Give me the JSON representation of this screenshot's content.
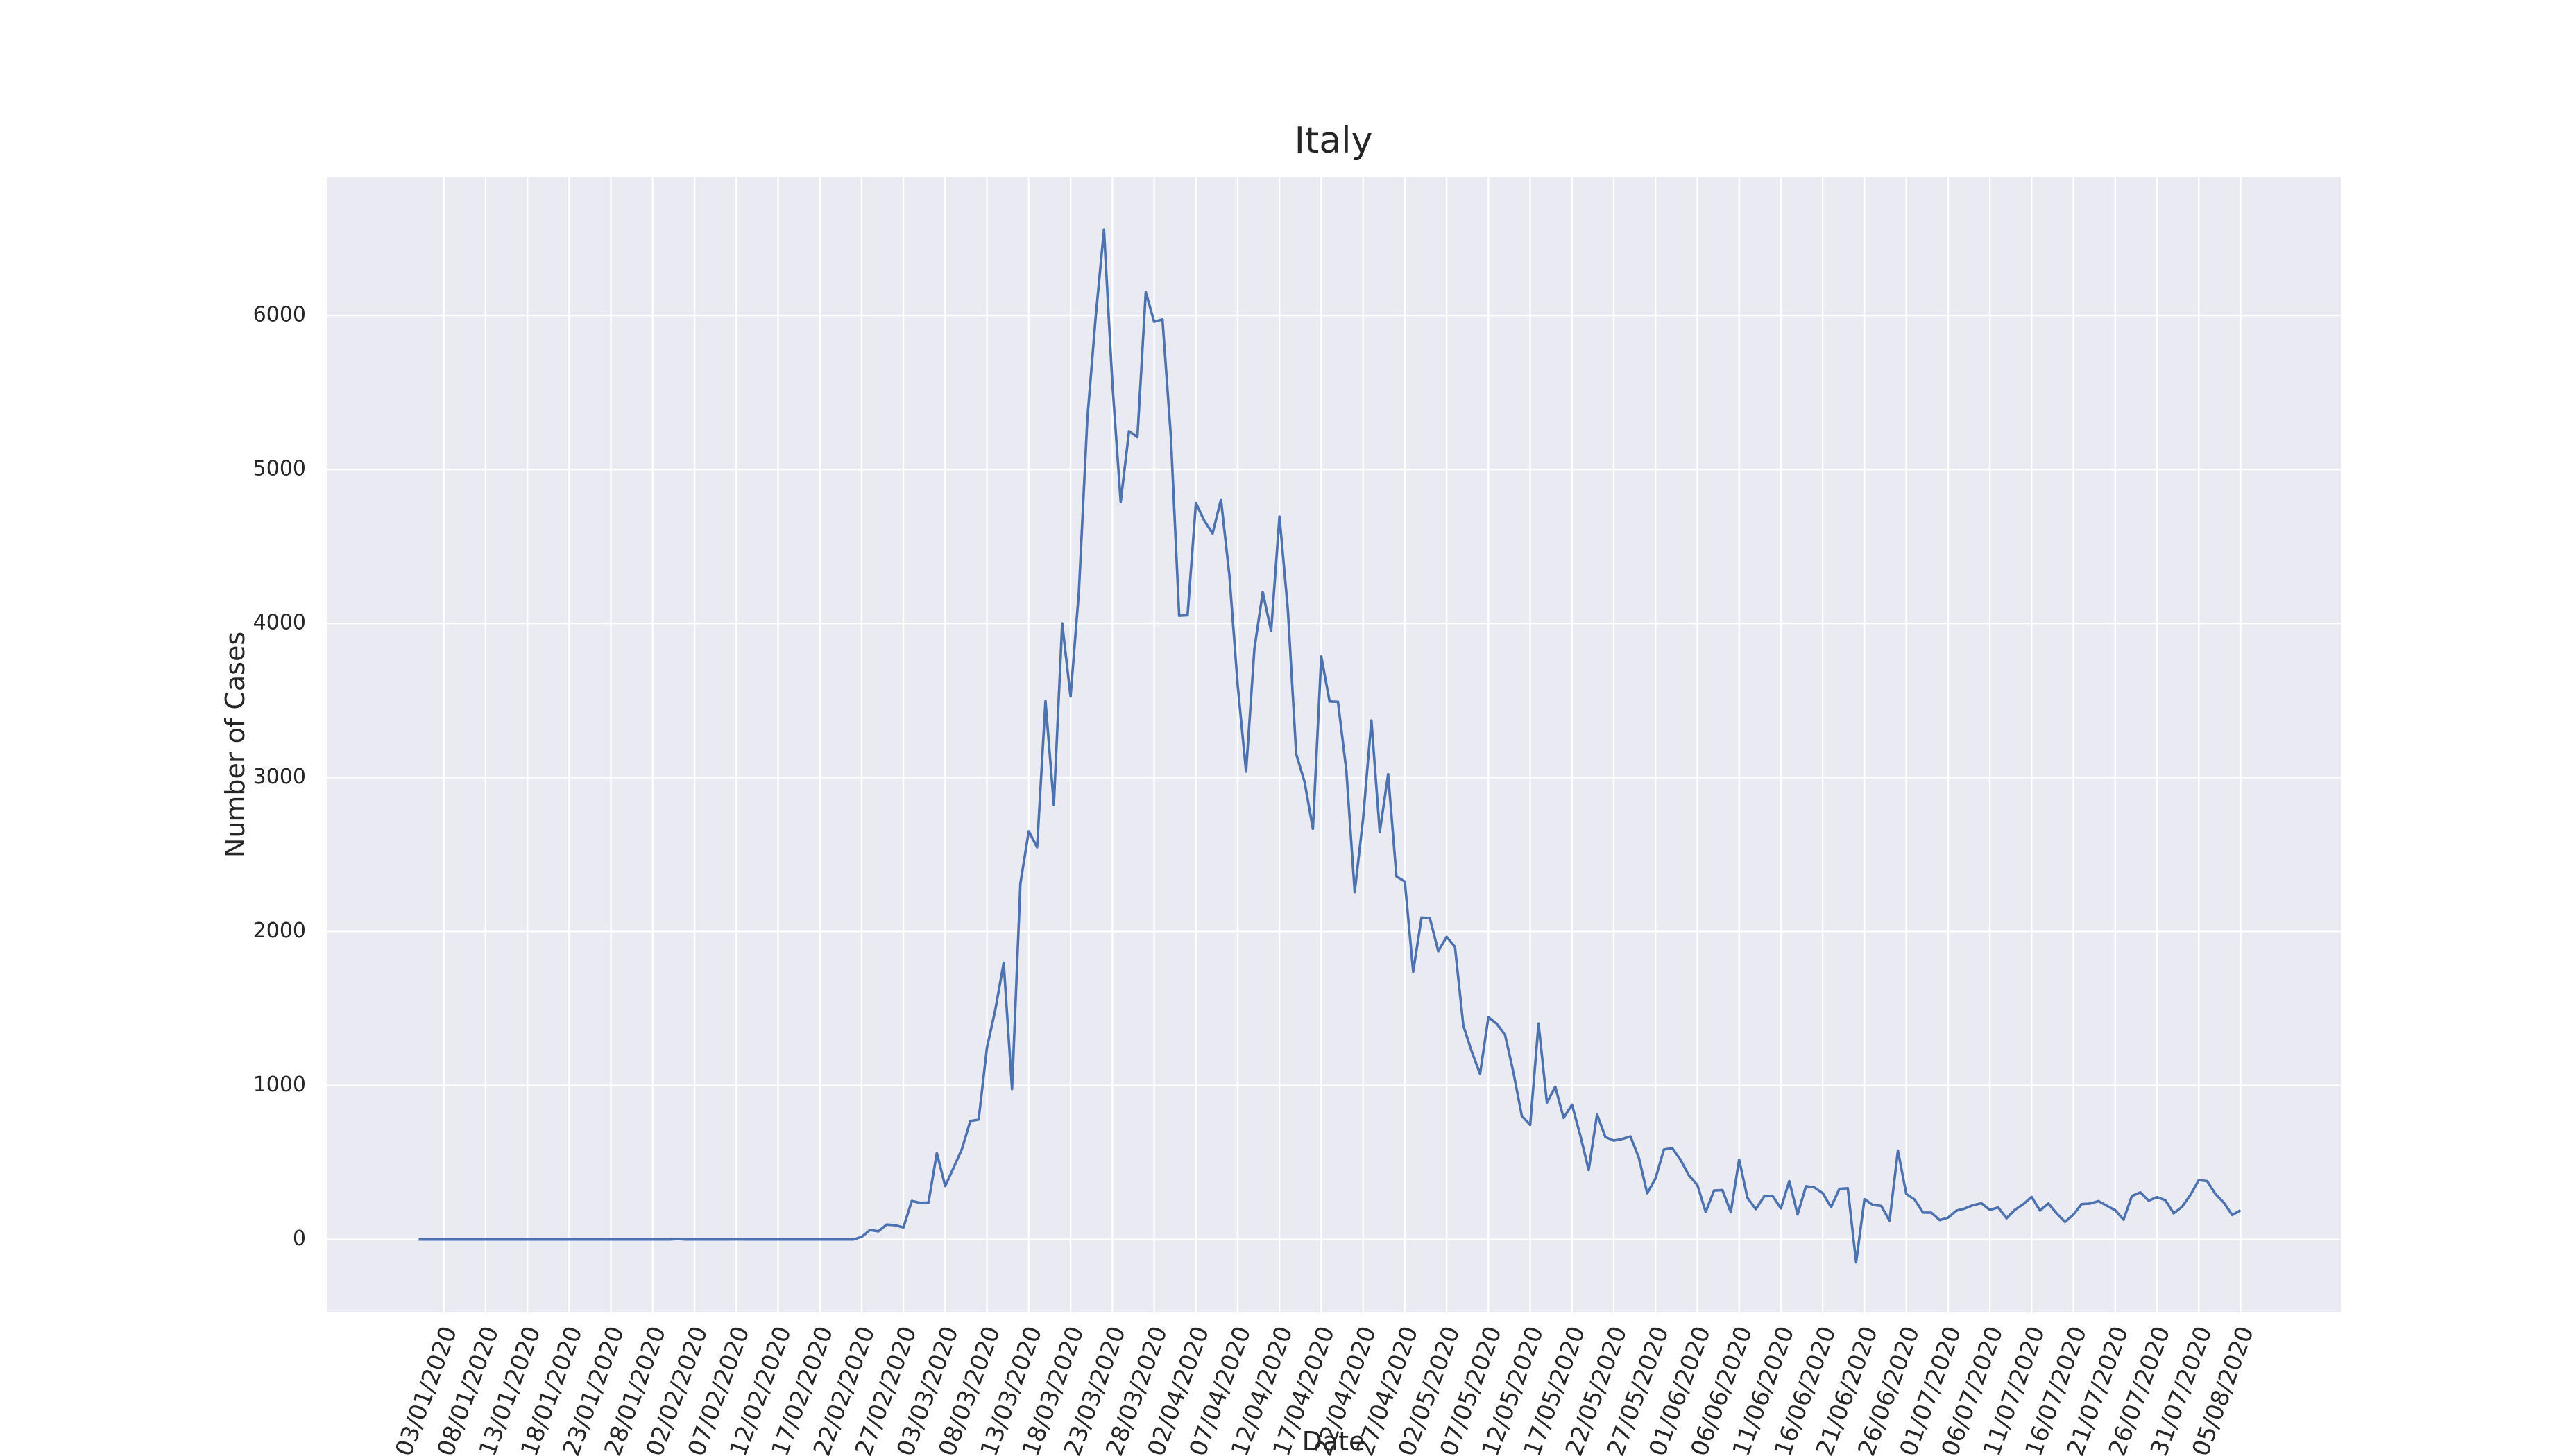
{
  "chart_data": {
    "type": "line",
    "title": "Italy",
    "x_label": "Date",
    "y_label": "Number of Cases",
    "color": "#4c72b0",
    "grid": true,
    "xlim": [
      "20/12/2019",
      "17/08/2020"
    ],
    "xticks": [
      "03/01/2020",
      "08/01/2020",
      "13/01/2020",
      "18/01/2020",
      "23/01/2020",
      "28/01/2020",
      "02/02/2020",
      "07/02/2020",
      "12/02/2020",
      "17/02/2020",
      "22/02/2020",
      "27/02/2020",
      "03/03/2020",
      "08/03/2020",
      "13/03/2020",
      "18/03/2020",
      "23/03/2020",
      "28/03/2020",
      "02/04/2020",
      "07/04/2020",
      "12/04/2020",
      "17/04/2020",
      "22/04/2020",
      "27/04/2020",
      "02/05/2020",
      "07/05/2020",
      "12/05/2020",
      "17/05/2020",
      "22/05/2020",
      "27/05/2020",
      "01/06/2020",
      "06/06/2020",
      "11/06/2020",
      "16/06/2020",
      "21/06/2020",
      "26/06/2020",
      "01/07/2020",
      "06/07/2020",
      "11/07/2020",
      "16/07/2020",
      "21/07/2020",
      "26/07/2020",
      "31/07/2020",
      "05/08/2020"
    ],
    "ylim": [
      -474,
      6896
    ],
    "yticks": [
      0,
      1000,
      2000,
      3000,
      4000,
      5000,
      6000
    ],
    "x": [
      "31/12/2019",
      "01/01/2020",
      "02/01/2020",
      "03/01/2020",
      "04/01/2020",
      "05/01/2020",
      "06/01/2020",
      "07/01/2020",
      "08/01/2020",
      "09/01/2020",
      "10/01/2020",
      "11/01/2020",
      "12/01/2020",
      "13/01/2020",
      "14/01/2020",
      "15/01/2020",
      "16/01/2020",
      "17/01/2020",
      "18/01/2020",
      "19/01/2020",
      "20/01/2020",
      "21/01/2020",
      "22/01/2020",
      "23/01/2020",
      "24/01/2020",
      "25/01/2020",
      "26/01/2020",
      "27/01/2020",
      "28/01/2020",
      "29/01/2020",
      "30/01/2020",
      "31/01/2020",
      "01/02/2020",
      "02/02/2020",
      "03/02/2020",
      "04/02/2020",
      "05/02/2020",
      "06/02/2020",
      "07/02/2020",
      "08/02/2020",
      "09/02/2020",
      "10/02/2020",
      "11/02/2020",
      "12/02/2020",
      "13/02/2020",
      "14/02/2020",
      "15/02/2020",
      "16/02/2020",
      "17/02/2020",
      "18/02/2020",
      "19/02/2020",
      "20/02/2020",
      "21/02/2020",
      "22/02/2020",
      "23/02/2020",
      "24/02/2020",
      "25/02/2020",
      "26/02/2020",
      "27/02/2020",
      "28/02/2020",
      "29/02/2020",
      "01/03/2020",
      "02/03/2020",
      "03/03/2020",
      "04/03/2020",
      "05/03/2020",
      "06/03/2020",
      "07/03/2020",
      "08/03/2020",
      "09/03/2020",
      "10/03/2020",
      "11/03/2020",
      "12/03/2020",
      "13/03/2020",
      "14/03/2020",
      "15/03/2020",
      "16/03/2020",
      "17/03/2020",
      "18/03/2020",
      "19/03/2020",
      "20/03/2020",
      "21/03/2020",
      "22/03/2020",
      "23/03/2020",
      "24/03/2020",
      "25/03/2020",
      "26/03/2020",
      "27/03/2020",
      "28/03/2020",
      "29/03/2020",
      "30/03/2020",
      "31/03/2020",
      "01/04/2020",
      "02/04/2020",
      "03/04/2020",
      "04/04/2020",
      "05/04/2020",
      "06/04/2020",
      "07/04/2020",
      "08/04/2020",
      "09/04/2020",
      "10/04/2020",
      "11/04/2020",
      "12/04/2020",
      "13/04/2020",
      "14/04/2020",
      "15/04/2020",
      "16/04/2020",
      "17/04/2020",
      "18/04/2020",
      "19/04/2020",
      "20/04/2020",
      "21/04/2020",
      "22/04/2020",
      "23/04/2020",
      "24/04/2020",
      "25/04/2020",
      "26/04/2020",
      "27/04/2020",
      "28/04/2020",
      "29/04/2020",
      "30/04/2020",
      "01/05/2020",
      "02/05/2020",
      "03/05/2020",
      "04/05/2020",
      "05/05/2020",
      "06/05/2020",
      "07/05/2020",
      "08/05/2020",
      "09/05/2020",
      "10/05/2020",
      "11/05/2020",
      "12/05/2020",
      "13/05/2020",
      "14/05/2020",
      "15/05/2020",
      "16/05/2020",
      "17/05/2020",
      "18/05/2020",
      "19/05/2020",
      "20/05/2020",
      "21/05/2020",
      "22/05/2020",
      "23/05/2020",
      "24/05/2020",
      "25/05/2020",
      "26/05/2020",
      "27/05/2020",
      "28/05/2020",
      "29/05/2020",
      "30/05/2020",
      "31/05/2020",
      "01/06/2020",
      "02/06/2020",
      "03/06/2020",
      "04/06/2020",
      "05/06/2020",
      "06/06/2020",
      "07/06/2020",
      "08/06/2020",
      "09/06/2020",
      "10/06/2020",
      "11/06/2020",
      "12/06/2020",
      "13/06/2020",
      "14/06/2020",
      "15/06/2020",
      "16/06/2020",
      "17/06/2020",
      "18/06/2020",
      "19/06/2020",
      "20/06/2020",
      "21/06/2020",
      "22/06/2020",
      "23/06/2020",
      "24/06/2020",
      "25/06/2020",
      "26/06/2020",
      "27/06/2020",
      "28/06/2020",
      "29/06/2020",
      "30/06/2020",
      "01/07/2020",
      "02/07/2020",
      "03/07/2020",
      "04/07/2020",
      "05/07/2020",
      "06/07/2020",
      "07/07/2020",
      "08/07/2020",
      "09/07/2020",
      "10/07/2020",
      "11/07/2020",
      "12/07/2020",
      "13/07/2020",
      "14/07/2020",
      "15/07/2020",
      "16/07/2020",
      "17/07/2020",
      "18/07/2020",
      "19/07/2020",
      "20/07/2020",
      "21/07/2020",
      "22/07/2020",
      "23/07/2020",
      "24/07/2020",
      "25/07/2020",
      "26/07/2020",
      "27/07/2020",
      "28/07/2020",
      "29/07/2020",
      "30/07/2020",
      "31/07/2020",
      "01/08/2020",
      "02/08/2020",
      "03/08/2020",
      "04/08/2020",
      "05/08/2020"
    ],
    "values": [
      0,
      0,
      0,
      0,
      0,
      0,
      0,
      0,
      0,
      0,
      0,
      0,
      0,
      0,
      0,
      0,
      0,
      0,
      0,
      0,
      0,
      0,
      0,
      0,
      0,
      0,
      0,
      0,
      0,
      0,
      0,
      3,
      0,
      0,
      0,
      0,
      0,
      0,
      1,
      0,
      0,
      0,
      0,
      0,
      0,
      0,
      0,
      0,
      0,
      0,
      0,
      0,
      0,
      17,
      62,
      53,
      97,
      93,
      78,
      250,
      238,
      240,
      561,
      347,
      466,
      587,
      769,
      778,
      1247,
      1492,
      1797,
      977,
      2313,
      2651,
      2547,
      3497,
      2823,
      4000,
      3526,
      4207,
      5322,
      5986,
      6557,
      5560,
      4789,
      5249,
      5210,
      6153,
      5959,
      5974,
      5217,
      4050,
      4053,
      4782,
      4668,
      4585,
      4805,
      4316,
      3599,
      3039,
      3836,
      4204,
      3951,
      4694,
      4092,
      3153,
      2972,
      2667,
      3786,
      3493,
      3491,
      3047,
      2256,
      2729,
      3370,
      2646,
      3021,
      2357,
      2324,
      1739,
      2091,
      2086,
      1872,
      1965,
      1900,
      1389,
      1221,
      1075,
      1444,
      1401,
      1327,
      1083,
      802,
      744,
      1402,
      888,
      992,
      789,
      875,
      675,
      451,
      813,
      665,
      642,
      652,
      669,
      531,
      300,
      397,
      584,
      593,
      516,
      416,
      355,
      178,
      318,
      321,
      177,
      518,
      270,
      197,
      280,
      283,
      202,
      379,
      163,
      346,
      338,
      301,
      210,
      329,
      333,
      -148,
      262,
      224,
      218,
      122,
      577,
      296,
      259,
      175,
      174,
      126,
      142,
      187,
      201,
      223,
      235,
      192,
      208,
      138,
      193,
      229,
      276,
      188,
      234,
      169,
      114,
      162,
      230,
      233,
      249,
      219,
      190,
      129,
      282,
      306,
      252,
      275,
      255,
      170,
      212,
      289,
      386,
      379,
      295,
      239,
      159,
      190
    ]
  }
}
